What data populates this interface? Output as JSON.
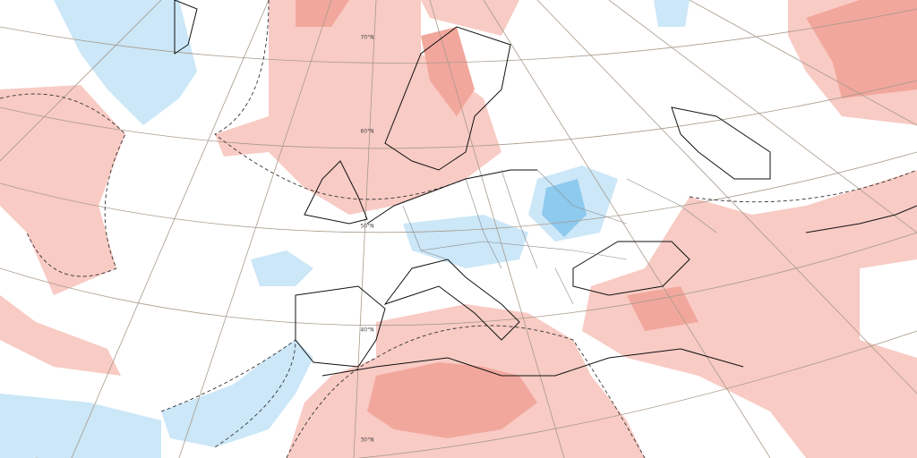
{
  "map": {
    "latitude_labels": [
      "70°N",
      "60°N",
      "50°N",
      "40°N",
      "30°N"
    ]
  }
}
